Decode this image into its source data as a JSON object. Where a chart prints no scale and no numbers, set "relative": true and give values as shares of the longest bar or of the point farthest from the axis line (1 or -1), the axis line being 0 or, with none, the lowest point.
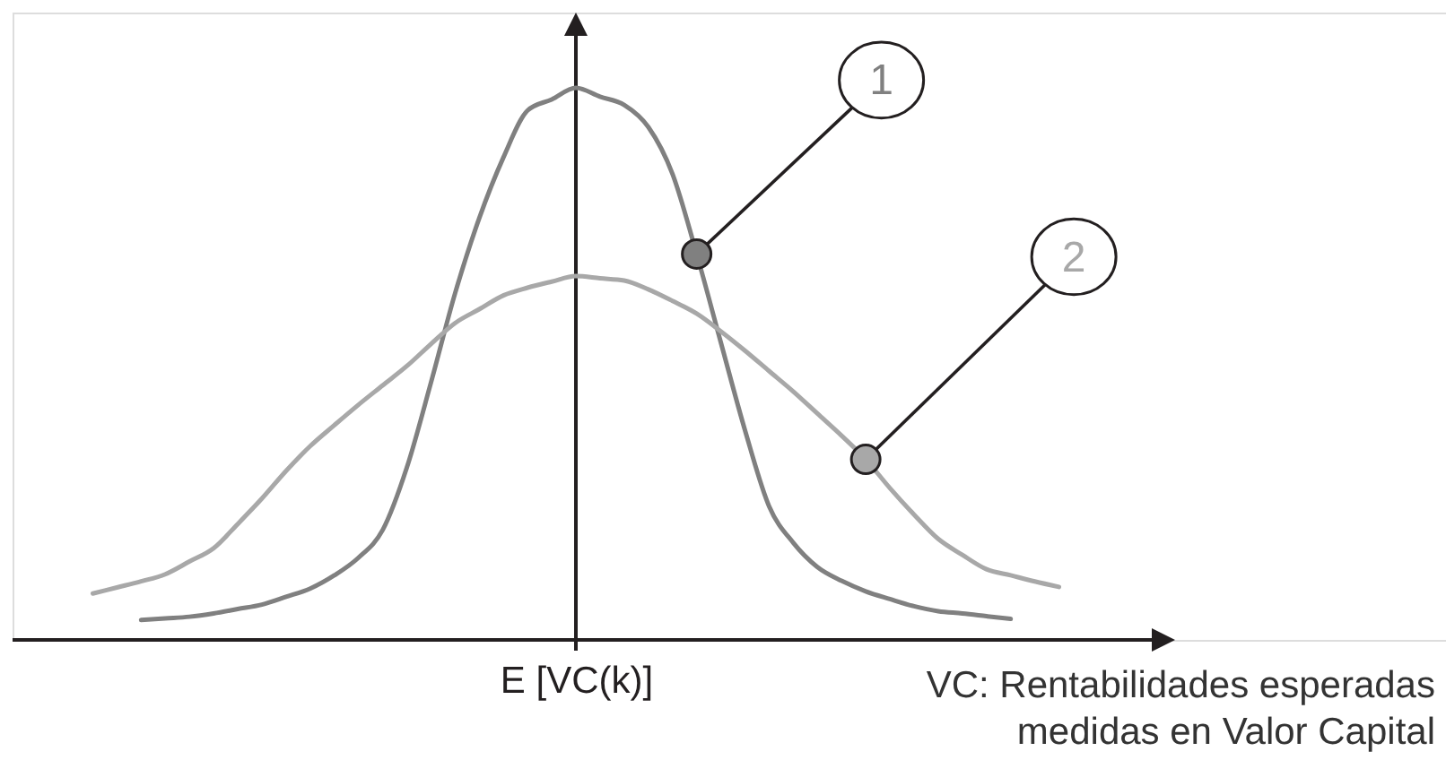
{
  "chart_data": {
    "type": "line",
    "relative": true,
    "xlabel": "E [VC(k)]",
    "categories": [
      null,
      null,
      null,
      null,
      null,
      null,
      null,
      null,
      null,
      null,
      null,
      null,
      null,
      null,
      null,
      null,
      null,
      null,
      null,
      null,
      null,
      null,
      null,
      null,
      null,
      null,
      null,
      null,
      null,
      null,
      null,
      null,
      null,
      null,
      null,
      null,
      null,
      null,
      null,
      null,
      null
    ],
    "series": [
      {
        "name": "1",
        "color": "#808080",
        "values": [
          null,
          null,
          0.036,
          0.039,
          0.042,
          0.048,
          0.056,
          0.064,
          0.078,
          0.093,
          0.117,
          0.149,
          0.199,
          0.312,
          0.466,
          0.628,
          0.764,
          0.874,
          0.959,
          0.979,
          1,
          0.984,
          0.969,
          0.929,
          0.844,
          0.699,
          0.539,
          0.38,
          0.242,
          0.176,
          0.132,
          0.107,
          0.088,
          0.074,
          0.061,
          0.052,
          0.048,
          0.043,
          0.038,
          null,
          null
        ]
      },
      {
        "name": "2",
        "color": "#a8a8a8",
        "values": [
          0.084,
          0.095,
          0.106,
          0.119,
          0.142,
          0.166,
          0.21,
          0.256,
          0.306,
          0.351,
          0.389,
          0.426,
          0.461,
          0.496,
          0.536,
          0.574,
          0.599,
          0.624,
          0.638,
          0.649,
          0.659,
          0.655,
          0.651,
          0.635,
          0.614,
          0.591,
          0.559,
          0.524,
          0.487,
          0.45,
          0.41,
          0.37,
          0.327,
          0.275,
          0.227,
          0.183,
          0.154,
          0.128,
          0.117,
          0.106,
          0.096
        ]
      }
    ],
    "annotations": [
      "VC: Rentabilidades esperadas\nmedidas en Valor Capital"
    ]
  }
}
